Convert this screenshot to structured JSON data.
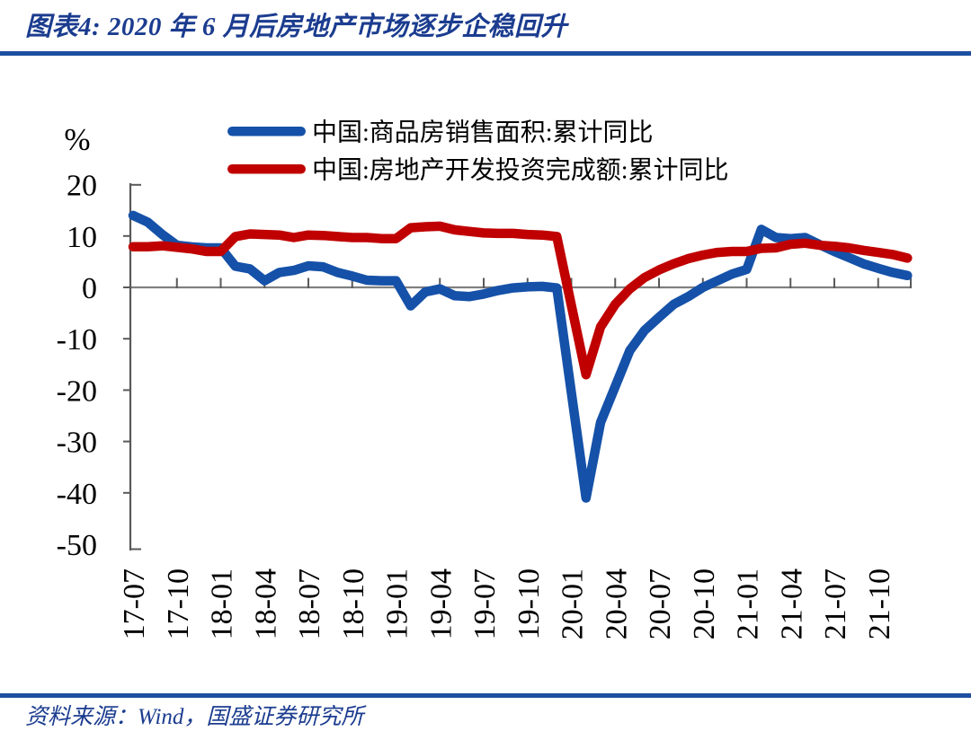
{
  "figure": {
    "title": "图表4: 2020 年 6 月后房地产市场逐步企稳回升",
    "source": "资料来源：Wind，国盛证券研究所",
    "unit_label": "%"
  },
  "colors": {
    "navy_text": "#1b3c8f",
    "rule_blue": "#1d4fa1",
    "series_blue": "#1551a8",
    "series_red": "#c00000",
    "zero_line": "#808080",
    "axis": "#595959",
    "tick_text": "#000000"
  },
  "legend": [
    {
      "label": "中国:商品房销售面积:累计同比",
      "color_key": "series_blue"
    },
    {
      "label": "中国:房地产开发投资完成额:累计同比",
      "color_key": "series_red"
    }
  ],
  "chart_data": {
    "type": "line",
    "title": "2020 年 6 月后房地产市场逐步企稳回升",
    "ylabel": "%",
    "ylim": [
      -50,
      20
    ],
    "y_ticks": [
      20,
      10,
      0,
      -10,
      -20,
      -30,
      -40,
      -50
    ],
    "grid": "zero-line-only",
    "legend_position": "top-center",
    "x_tick_labels": [
      "17-07",
      "17-10",
      "18-01",
      "18-04",
      "18-07",
      "18-10",
      "19-01",
      "19-04",
      "19-07",
      "19-10",
      "20-01",
      "20-04",
      "20-07",
      "20-10",
      "21-01",
      "21-04",
      "21-07",
      "21-10"
    ],
    "x": [
      "17-07",
      "17-08",
      "17-09",
      "17-10",
      "17-11",
      "17-12",
      "18-01",
      "18-02",
      "18-03",
      "18-04",
      "18-05",
      "18-06",
      "18-07",
      "18-08",
      "18-09",
      "18-10",
      "18-11",
      "18-12",
      "19-01",
      "19-02",
      "19-03",
      "19-04",
      "19-05",
      "19-06",
      "19-07",
      "19-08",
      "19-09",
      "19-10",
      "19-11",
      "19-12",
      "20-01",
      "20-02",
      "20-03",
      "20-04",
      "20-05",
      "20-06",
      "20-07",
      "20-08",
      "20-09",
      "20-10",
      "20-11",
      "20-12",
      "21-01",
      "21-02",
      "21-03",
      "21-04",
      "21-05",
      "21-06",
      "21-07",
      "21-08",
      "21-09",
      "21-10",
      "21-11",
      "21-12"
    ],
    "series": [
      {
        "name": "中国:商品房销售面积:累计同比",
        "color_key": "series_blue",
        "values": [
          14.0,
          12.7,
          10.3,
          8.2,
          7.9,
          7.7,
          7.7,
          4.1,
          3.6,
          1.3,
          2.9,
          3.3,
          4.2,
          4.0,
          2.9,
          2.2,
          1.4,
          1.3,
          1.3,
          -3.6,
          -0.9,
          -0.3,
          -1.6,
          -1.8,
          -1.3,
          -0.6,
          -0.1,
          0.1,
          0.2,
          -0.1,
          null,
          -41.0,
          -26.3,
          -19.3,
          -12.3,
          -8.4,
          -5.8,
          -3.3,
          -1.8,
          0.0,
          1.3,
          2.6,
          3.5,
          11.3,
          9.7,
          9.5,
          9.7,
          8.3,
          7.0,
          5.8,
          4.6,
          3.7,
          2.9,
          2.3
        ]
      },
      {
        "name": "中国:房地产开发投资完成额:累计同比",
        "color_key": "series_red",
        "values": [
          7.9,
          7.9,
          8.1,
          7.8,
          7.5,
          7.0,
          7.0,
          9.9,
          10.4,
          10.3,
          10.2,
          9.7,
          10.2,
          10.1,
          9.9,
          9.7,
          9.7,
          9.5,
          9.5,
          11.6,
          11.8,
          11.9,
          11.2,
          10.9,
          10.6,
          10.5,
          10.5,
          10.3,
          10.2,
          9.9,
          null,
          -17.0,
          -7.7,
          -3.3,
          -0.3,
          1.9,
          3.4,
          4.6,
          5.6,
          6.3,
          6.8,
          7.0,
          7.0,
          7.6,
          7.7,
          8.4,
          8.6,
          8.2,
          8.0,
          7.7,
          7.2,
          6.8,
          6.4,
          5.7
        ]
      }
    ]
  }
}
